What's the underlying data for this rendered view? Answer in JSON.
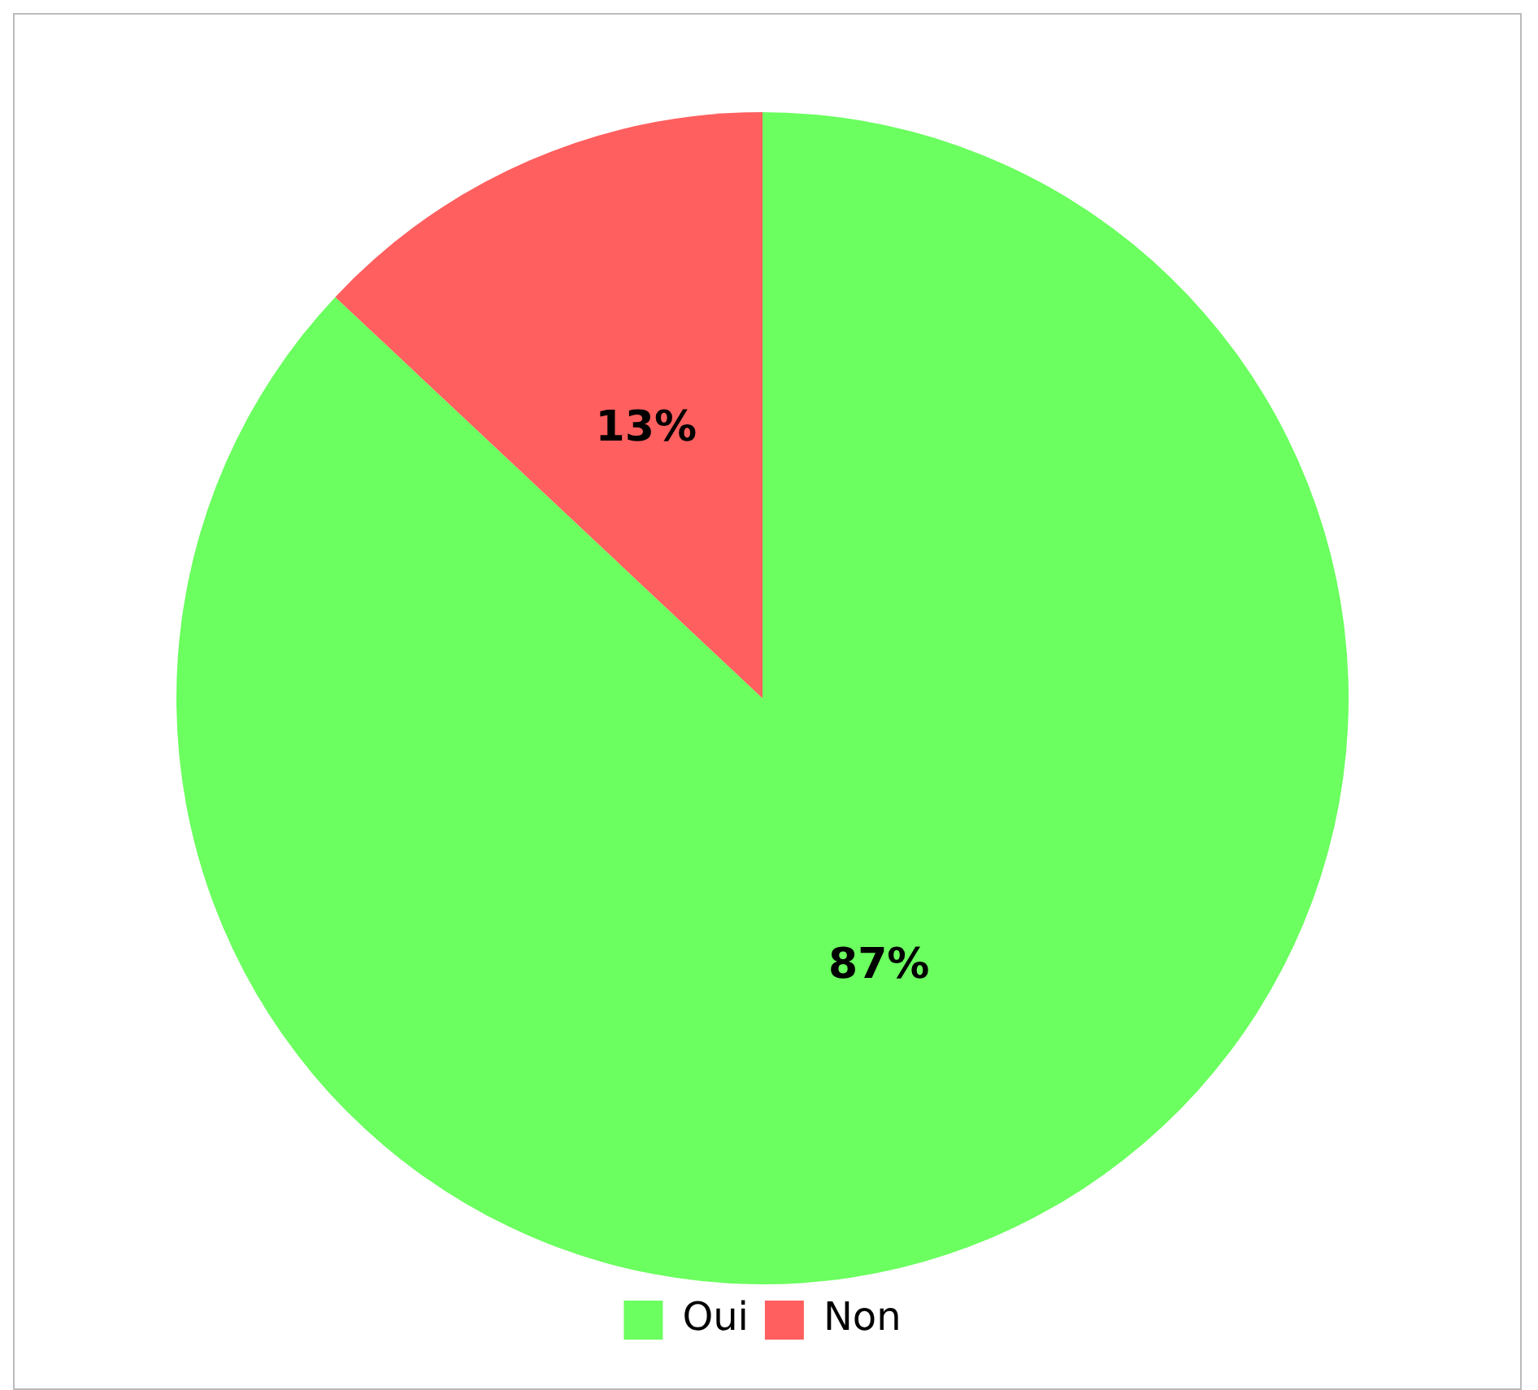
{
  "chart_data": {
    "type": "pie",
    "categories": [
      "Oui",
      "Non"
    ],
    "values": [
      87,
      13
    ],
    "colors": [
      "#6bff5f",
      "#ff5f5f"
    ],
    "value_labels": [
      "87%",
      "13%"
    ],
    "legend": "bottom"
  }
}
